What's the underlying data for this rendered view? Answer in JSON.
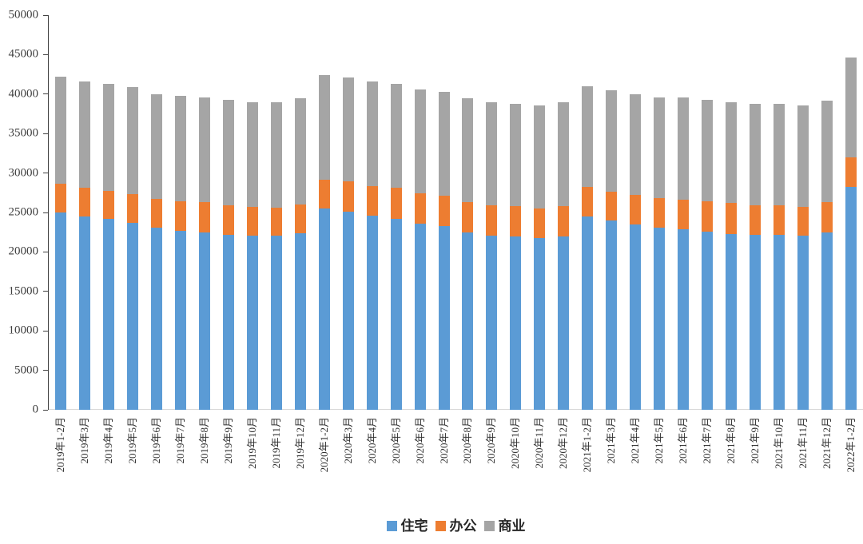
{
  "chart_data": {
    "type": "bar",
    "stacked": true,
    "title": "",
    "xlabel": "",
    "ylabel": "",
    "ylim": [
      0,
      50000
    ],
    "yticks": [
      0,
      5000,
      10000,
      15000,
      20000,
      25000,
      30000,
      35000,
      40000,
      45000,
      50000
    ],
    "grid": false,
    "legend_position": "bottom-center",
    "categories": [
      "2019年1-2月",
      "2019年3月",
      "2019年4月",
      "2019年5月",
      "2019年6月",
      "2019年7月",
      "2019年8月",
      "2019年9月",
      "2019年10月",
      "2019年11月",
      "2019年12月",
      "2020年1-2月",
      "2020年3月",
      "2020年4月",
      "2020年5月",
      "2020年6月",
      "2020年7月",
      "2020年8月",
      "2020年9月",
      "2020年10月",
      "2020年11月",
      "2020年12月",
      "2021年1-2月",
      "2021年3月",
      "2021年4月",
      "2021年5月",
      "2021年6月",
      "2021年7月",
      "2021年8月",
      "2021年9月",
      "2021年10月",
      "2021年11月",
      "2021年12月",
      "2022年1-2月"
    ],
    "series": [
      {
        "name": "住宅",
        "color": "#5B9BD5",
        "values": [
          25050,
          24500,
          24200,
          23700,
          23050,
          22650,
          22500,
          22150,
          22050,
          22100,
          22350,
          25500,
          25150,
          24550,
          24200,
          23600,
          23300,
          22500,
          22100,
          21950,
          21750,
          22000,
          24500,
          23950,
          23500,
          23100,
          22850,
          22550,
          22300,
          22150,
          22150,
          22050,
          22450,
          28200
        ]
      },
      {
        "name": "办公",
        "color": "#ED7D31",
        "values": [
          3600,
          3650,
          3500,
          3600,
          3650,
          3750,
          3800,
          3800,
          3700,
          3550,
          3700,
          3700,
          3800,
          3800,
          3900,
          3800,
          3800,
          3850,
          3850,
          3850,
          3800,
          3850,
          3700,
          3650,
          3750,
          3750,
          3800,
          3900,
          3900,
          3800,
          3750,
          3700,
          3900,
          3800
        ]
      },
      {
        "name": "商业",
        "color": "#A5A5A5",
        "values": [
          13550,
          13450,
          13600,
          13550,
          13300,
          13350,
          13300,
          13300,
          13250,
          13300,
          13400,
          13200,
          13150,
          13250,
          13200,
          13200,
          13150,
          13150,
          13000,
          12950,
          13050,
          13100,
          12750,
          12850,
          12700,
          12750,
          12900,
          12800,
          12800,
          12800,
          12850,
          12850,
          12800,
          12650
        ]
      }
    ]
  }
}
